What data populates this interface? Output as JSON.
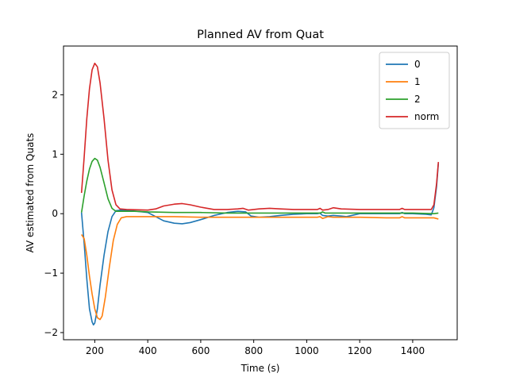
{
  "chart_data": {
    "type": "line",
    "title": "Planned AV from Quat",
    "xlabel": "Time (s)",
    "ylabel": "AV estimated from Quats",
    "xlim": [
      82,
      1568
    ],
    "ylim": [
      -2.12,
      2.82
    ],
    "xticks": [
      200,
      400,
      600,
      800,
      1000,
      1200,
      1400
    ],
    "yticks": [
      -2,
      -1,
      0,
      1,
      2
    ],
    "ytick_labels": [
      "−2",
      "−1",
      "0",
      "1",
      "2"
    ],
    "grid": false,
    "legend_position": "upper right",
    "series": [
      {
        "name": "0",
        "color": "#1f77b4",
        "points": [
          [
            150,
            0.02
          ],
          [
            160,
            -0.5
          ],
          [
            170,
            -1.1
          ],
          [
            180,
            -1.6
          ],
          [
            190,
            -1.82
          ],
          [
            195,
            -1.87
          ],
          [
            200,
            -1.84
          ],
          [
            210,
            -1.6
          ],
          [
            220,
            -1.2
          ],
          [
            235,
            -0.7
          ],
          [
            250,
            -0.3
          ],
          [
            265,
            -0.05
          ],
          [
            280,
            0.05
          ],
          [
            300,
            0.06
          ],
          [
            330,
            0.05
          ],
          [
            360,
            0.04
          ],
          [
            400,
            0.02
          ],
          [
            430,
            -0.05
          ],
          [
            460,
            -0.12
          ],
          [
            500,
            -0.16
          ],
          [
            530,
            -0.17
          ],
          [
            560,
            -0.15
          ],
          [
            600,
            -0.1
          ],
          [
            650,
            -0.03
          ],
          [
            700,
            0.02
          ],
          [
            740,
            0.04
          ],
          [
            770,
            0.03
          ],
          [
            790,
            -0.04
          ],
          [
            820,
            -0.06
          ],
          [
            860,
            -0.05
          ],
          [
            900,
            -0.03
          ],
          [
            950,
            -0.01
          ],
          [
            1000,
            0.0
          ],
          [
            1040,
            0.0
          ],
          [
            1050,
            0.01
          ],
          [
            1060,
            -0.03
          ],
          [
            1080,
            -0.04
          ],
          [
            1100,
            -0.03
          ],
          [
            1130,
            -0.04
          ],
          [
            1150,
            -0.05
          ],
          [
            1180,
            -0.02
          ],
          [
            1200,
            0.0
          ],
          [
            1250,
            0.0
          ],
          [
            1300,
            0.0
          ],
          [
            1350,
            0.0
          ],
          [
            1360,
            0.02
          ],
          [
            1370,
            0.0
          ],
          [
            1400,
            0.0
          ],
          [
            1450,
            -0.01
          ],
          [
            1470,
            -0.02
          ],
          [
            1480,
            0.1
          ],
          [
            1490,
            0.45
          ],
          [
            1497,
            0.85
          ]
        ]
      },
      {
        "name": "1",
        "color": "#ff7f0e",
        "points": [
          [
            150,
            -0.35
          ],
          [
            160,
            -0.42
          ],
          [
            170,
            -0.7
          ],
          [
            180,
            -1.05
          ],
          [
            190,
            -1.35
          ],
          [
            200,
            -1.6
          ],
          [
            210,
            -1.75
          ],
          [
            220,
            -1.78
          ],
          [
            228,
            -1.72
          ],
          [
            240,
            -1.4
          ],
          [
            255,
            -0.9
          ],
          [
            270,
            -0.45
          ],
          [
            285,
            -0.18
          ],
          [
            300,
            -0.07
          ],
          [
            320,
            -0.05
          ],
          [
            400,
            -0.05
          ],
          [
            500,
            -0.05
          ],
          [
            600,
            -0.06
          ],
          [
            700,
            -0.06
          ],
          [
            800,
            -0.06
          ],
          [
            900,
            -0.06
          ],
          [
            1000,
            -0.06
          ],
          [
            1040,
            -0.06
          ],
          [
            1050,
            -0.05
          ],
          [
            1060,
            -0.08
          ],
          [
            1080,
            -0.05
          ],
          [
            1100,
            -0.06
          ],
          [
            1200,
            -0.06
          ],
          [
            1300,
            -0.07
          ],
          [
            1350,
            -0.07
          ],
          [
            1360,
            -0.05
          ],
          [
            1370,
            -0.07
          ],
          [
            1400,
            -0.07
          ],
          [
            1450,
            -0.07
          ],
          [
            1480,
            -0.07
          ],
          [
            1497,
            -0.09
          ]
        ]
      },
      {
        "name": "2",
        "color": "#2ca02c",
        "points": [
          [
            150,
            0.02
          ],
          [
            160,
            0.3
          ],
          [
            170,
            0.55
          ],
          [
            180,
            0.75
          ],
          [
            190,
            0.88
          ],
          [
            200,
            0.93
          ],
          [
            210,
            0.9
          ],
          [
            220,
            0.78
          ],
          [
            235,
            0.52
          ],
          [
            250,
            0.25
          ],
          [
            265,
            0.09
          ],
          [
            280,
            0.04
          ],
          [
            300,
            0.04
          ],
          [
            350,
            0.04
          ],
          [
            400,
            0.03
          ],
          [
            500,
            0.02
          ],
          [
            600,
            0.02
          ],
          [
            700,
            0.01
          ],
          [
            800,
            0.01
          ],
          [
            900,
            0.01
          ],
          [
            1000,
            0.01
          ],
          [
            1050,
            0.01
          ],
          [
            1060,
            0.03
          ],
          [
            1070,
            0.01
          ],
          [
            1100,
            0.01
          ],
          [
            1200,
            0.01
          ],
          [
            1300,
            0.01
          ],
          [
            1400,
            0.01
          ],
          [
            1480,
            0.0
          ],
          [
            1497,
            0.01
          ]
        ]
      },
      {
        "name": "norm",
        "color": "#d62728",
        "points": [
          [
            150,
            0.35
          ],
          [
            160,
            0.95
          ],
          [
            170,
            1.6
          ],
          [
            180,
            2.1
          ],
          [
            190,
            2.42
          ],
          [
            200,
            2.53
          ],
          [
            210,
            2.47
          ],
          [
            220,
            2.2
          ],
          [
            235,
            1.6
          ],
          [
            250,
            0.9
          ],
          [
            265,
            0.4
          ],
          [
            280,
            0.15
          ],
          [
            295,
            0.08
          ],
          [
            320,
            0.07
          ],
          [
            400,
            0.06
          ],
          [
            430,
            0.08
          ],
          [
            460,
            0.13
          ],
          [
            500,
            0.16
          ],
          [
            530,
            0.17
          ],
          [
            560,
            0.15
          ],
          [
            600,
            0.11
          ],
          [
            650,
            0.07
          ],
          [
            700,
            0.07
          ],
          [
            740,
            0.08
          ],
          [
            760,
            0.09
          ],
          [
            780,
            0.06
          ],
          [
            820,
            0.08
          ],
          [
            860,
            0.09
          ],
          [
            900,
            0.08
          ],
          [
            950,
            0.07
          ],
          [
            1000,
            0.07
          ],
          [
            1040,
            0.07
          ],
          [
            1050,
            0.09
          ],
          [
            1060,
            0.06
          ],
          [
            1080,
            0.07
          ],
          [
            1100,
            0.1
          ],
          [
            1130,
            0.08
          ],
          [
            1200,
            0.07
          ],
          [
            1300,
            0.07
          ],
          [
            1350,
            0.07
          ],
          [
            1360,
            0.09
          ],
          [
            1370,
            0.07
          ],
          [
            1400,
            0.07
          ],
          [
            1450,
            0.07
          ],
          [
            1470,
            0.07
          ],
          [
            1480,
            0.15
          ],
          [
            1490,
            0.5
          ],
          [
            1497,
            0.87
          ]
        ]
      }
    ]
  }
}
